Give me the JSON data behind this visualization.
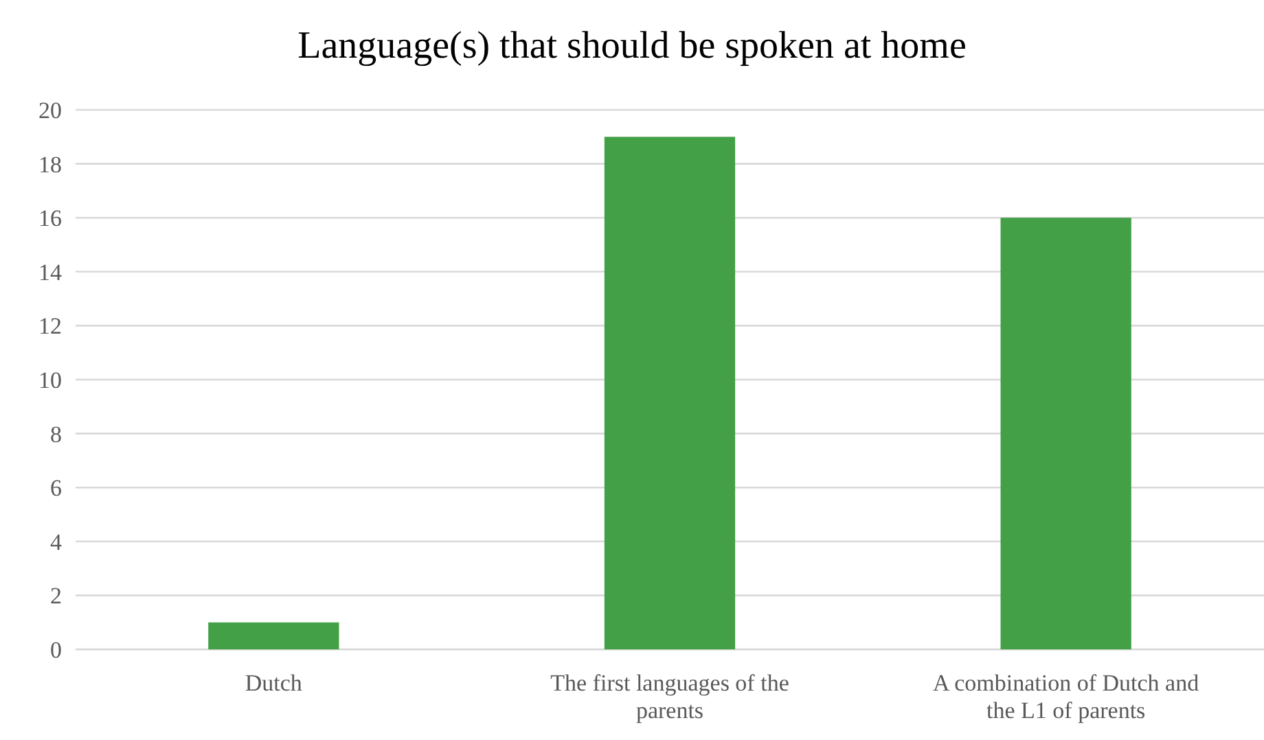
{
  "chart_data": {
    "type": "bar",
    "title": "Language(s) that should be spoken at home",
    "categories": [
      "Dutch",
      "The first languages of the parents",
      "A combination of Dutch and the L1 of parents"
    ],
    "values": [
      1,
      19,
      16
    ],
    "color": "#43a047",
    "ylim": [
      0,
      20
    ],
    "yticks": [
      0,
      2,
      4,
      6,
      8,
      10,
      12,
      14,
      16,
      18,
      20
    ],
    "grid": true
  }
}
